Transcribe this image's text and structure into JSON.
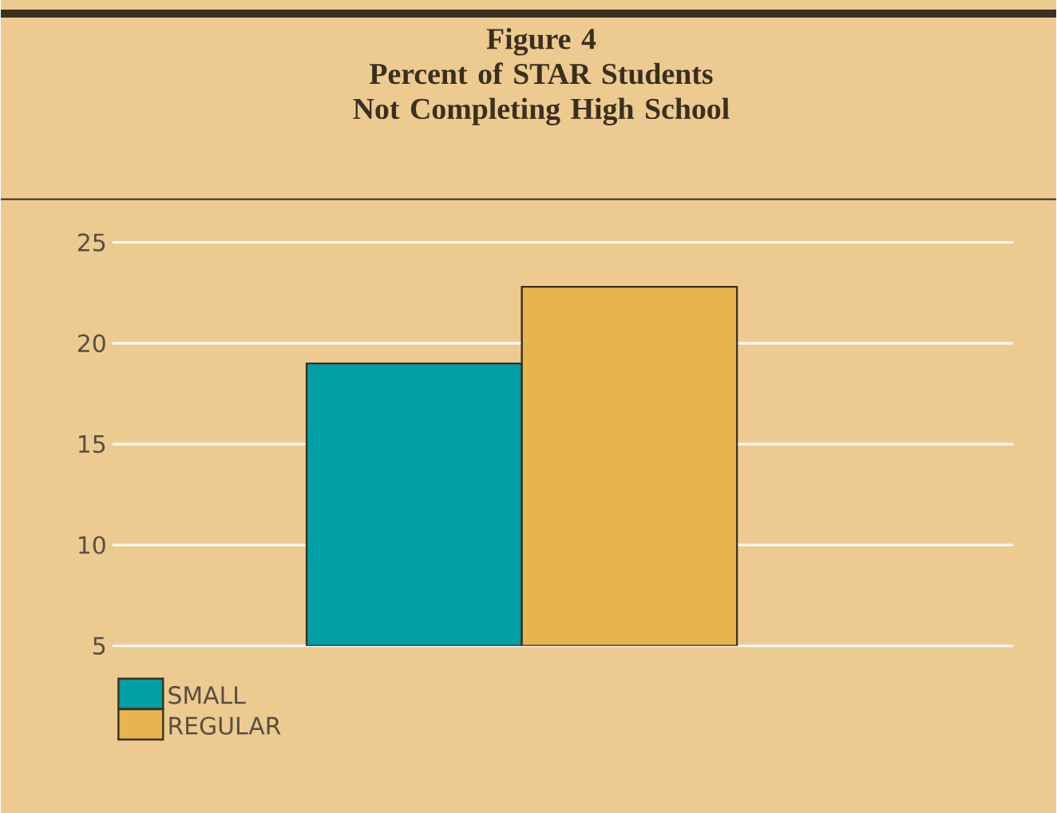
{
  "chart_data": {
    "type": "bar",
    "title": "Figure 4",
    "subtitle": "Percent of STAR Students Not Completing High School",
    "categories": [
      null
    ],
    "series": [
      {
        "name": "SMALL",
        "color": "#00a0a6",
        "values": [
          19.0
        ]
      },
      {
        "name": "REGULAR",
        "color": "#e8b44e",
        "values": [
          22.8
        ]
      }
    ],
    "ylim": [
      5,
      25
    ],
    "yticks": [
      5,
      10,
      15,
      20,
      25
    ],
    "grid": "y",
    "legend": "bottom left"
  }
}
